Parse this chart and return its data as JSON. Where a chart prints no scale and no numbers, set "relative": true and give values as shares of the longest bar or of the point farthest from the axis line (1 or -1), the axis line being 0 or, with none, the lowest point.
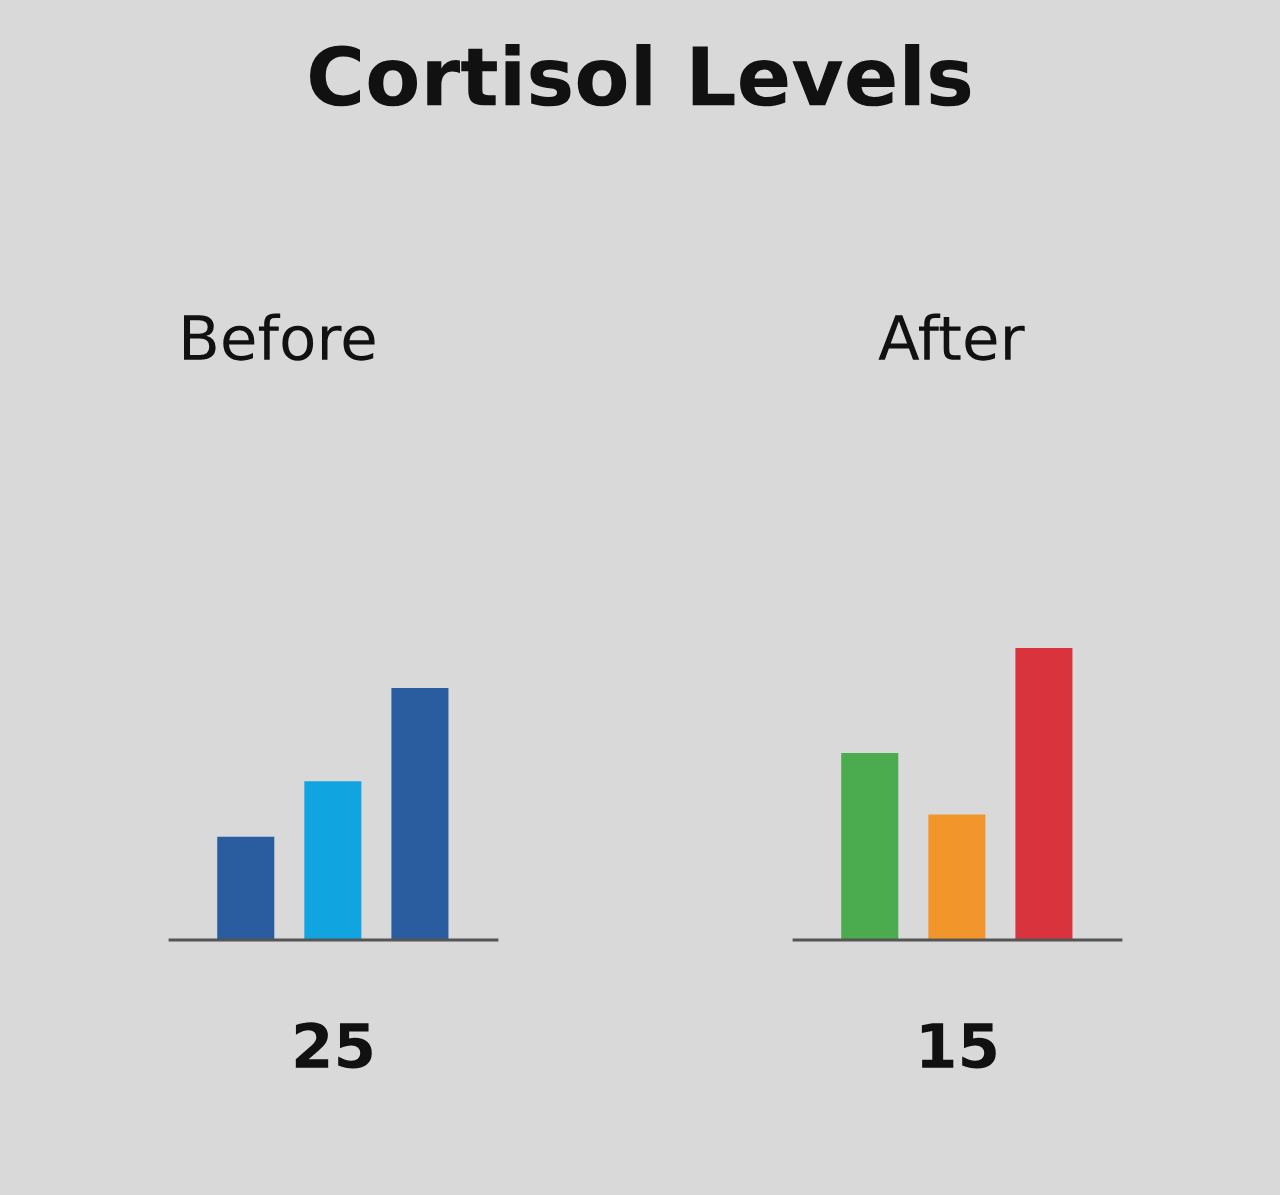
{
  "chart_data": [
    {
      "type": "bar",
      "title": "Cortisol Levels",
      "subtitle": "Before",
      "xlabel": "25",
      "relative": true,
      "categories": [
        null,
        null,
        null
      ],
      "values": [
        0.41,
        0.63,
        1
      ],
      "colors": [
        "#2a5ca0",
        "#10a4e0",
        "#2a5ca0"
      ]
    },
    {
      "type": "bar",
      "subtitle": "After",
      "xlabel": "15",
      "relative": true,
      "categories": [
        null,
        null,
        null
      ],
      "values": [
        0.64,
        0.43,
        1
      ],
      "colors": [
        "#4aab4f",
        "#f2962c",
        "#d9343e"
      ]
    }
  ]
}
